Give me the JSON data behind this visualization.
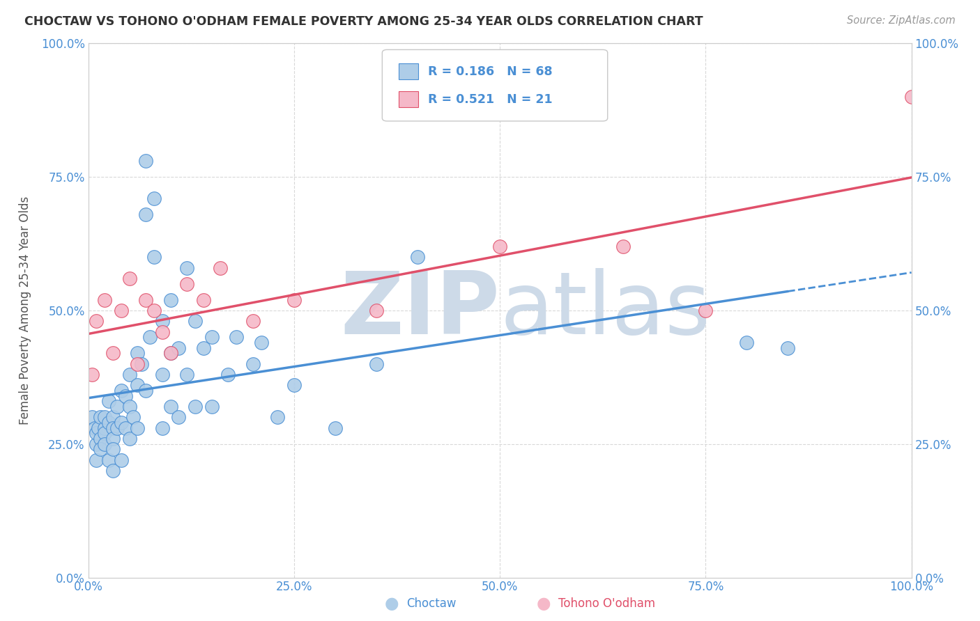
{
  "title": "CHOCTAW VS TOHONO O'ODHAM FEMALE POVERTY AMONG 25-34 YEAR OLDS CORRELATION CHART",
  "source": "Source: ZipAtlas.com",
  "ylabel": "Female Poverty Among 25-34 Year Olds",
  "xlim": [
    0,
    1
  ],
  "ylim": [
    0,
    1
  ],
  "xticks": [
    0.0,
    0.25,
    0.5,
    0.75,
    1.0
  ],
  "yticks": [
    0.0,
    0.25,
    0.5,
    0.75,
    1.0
  ],
  "xtick_labels": [
    "0.0%",
    "25.0%",
    "50.0%",
    "75.0%",
    "100.0%"
  ],
  "ytick_labels": [
    "0.0%",
    "25.0%",
    "50.0%",
    "75.0%",
    "100.0%"
  ],
  "choctaw_color": "#aecde8",
  "tohono_color": "#f5b8c8",
  "choctaw_line_color": "#4a8fd4",
  "tohono_line_color": "#e0506a",
  "choctaw_R": 0.186,
  "choctaw_N": 68,
  "tohono_R": 0.521,
  "tohono_N": 21,
  "watermark_zip": "ZIP",
  "watermark_atlas": "atlas",
  "watermark_color": "#cddae8",
  "background_color": "#ffffff",
  "grid_color": "#d8d8d8",
  "legend_text_color": "#4a8fd4",
  "title_color": "#333333",
  "source_color": "#999999",
  "axis_tick_color": "#4a8fd4",
  "ylabel_color": "#555555",
  "choctaw_x": [
    0.005,
    0.008,
    0.01,
    0.01,
    0.01,
    0.012,
    0.015,
    0.015,
    0.015,
    0.02,
    0.02,
    0.02,
    0.02,
    0.025,
    0.025,
    0.025,
    0.03,
    0.03,
    0.03,
    0.03,
    0.03,
    0.035,
    0.035,
    0.04,
    0.04,
    0.04,
    0.045,
    0.045,
    0.05,
    0.05,
    0.05,
    0.055,
    0.06,
    0.06,
    0.06,
    0.065,
    0.07,
    0.07,
    0.07,
    0.075,
    0.08,
    0.08,
    0.09,
    0.09,
    0.09,
    0.1,
    0.1,
    0.1,
    0.11,
    0.11,
    0.12,
    0.12,
    0.13,
    0.13,
    0.14,
    0.15,
    0.15,
    0.17,
    0.18,
    0.2,
    0.21,
    0.23,
    0.25,
    0.3,
    0.35,
    0.4,
    0.8,
    0.85
  ],
  "choctaw_y": [
    0.3,
    0.28,
    0.22,
    0.25,
    0.27,
    0.28,
    0.3,
    0.26,
    0.24,
    0.28,
    0.3,
    0.27,
    0.25,
    0.33,
    0.29,
    0.22,
    0.3,
    0.28,
    0.26,
    0.24,
    0.2,
    0.32,
    0.28,
    0.35,
    0.29,
    0.22,
    0.34,
    0.28,
    0.38,
    0.32,
    0.26,
    0.3,
    0.42,
    0.36,
    0.28,
    0.4,
    0.78,
    0.68,
    0.35,
    0.45,
    0.71,
    0.6,
    0.48,
    0.38,
    0.28,
    0.52,
    0.42,
    0.32,
    0.43,
    0.3,
    0.58,
    0.38,
    0.48,
    0.32,
    0.43,
    0.45,
    0.32,
    0.38,
    0.45,
    0.4,
    0.44,
    0.3,
    0.36,
    0.28,
    0.4,
    0.6,
    0.44,
    0.43
  ],
  "tohono_x": [
    0.005,
    0.01,
    0.02,
    0.03,
    0.04,
    0.05,
    0.06,
    0.07,
    0.08,
    0.09,
    0.1,
    0.12,
    0.14,
    0.16,
    0.2,
    0.25,
    0.35,
    0.5,
    0.65,
    0.75,
    1.0
  ],
  "tohono_y": [
    0.38,
    0.48,
    0.52,
    0.42,
    0.5,
    0.56,
    0.4,
    0.52,
    0.5,
    0.46,
    0.42,
    0.55,
    0.52,
    0.58,
    0.48,
    0.52,
    0.5,
    0.62,
    0.62,
    0.5,
    0.9
  ]
}
